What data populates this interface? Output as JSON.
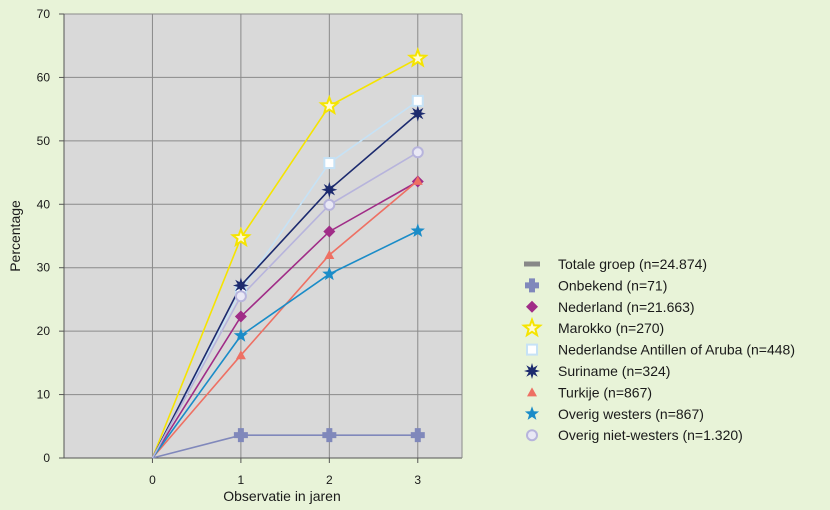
{
  "chart_data": {
    "type": "line",
    "xlabel": "Observatie in jaren",
    "ylabel": "Percentage",
    "x": [
      0,
      1,
      2,
      3
    ],
    "xlim": [
      -1,
      3.5
    ],
    "ylim": [
      0,
      70
    ],
    "x_ticks": [
      "0",
      "1",
      "2",
      "3"
    ],
    "y_ticks": [
      "0",
      "10",
      "20",
      "30",
      "40",
      "50",
      "60",
      "70"
    ],
    "grid": true,
    "legend_position": "right",
    "series": [
      {
        "name": "Totale groep (n=24.874)",
        "color": "#888888",
        "marker": "bar",
        "values": [
          null,
          null,
          null,
          null
        ]
      },
      {
        "name": "Onbekend (n=71)",
        "color": "#8088bb",
        "marker": "plus",
        "values": [
          0,
          3.6,
          3.6,
          3.6
        ]
      },
      {
        "name": "Nederland (n=21.663)",
        "color": "#a02c87",
        "marker": "diamond",
        "values": [
          0,
          22.3,
          35.7,
          43.6
        ]
      },
      {
        "name": "Marokko (n=270)",
        "color": "#f5e400",
        "marker": "star-open",
        "values": [
          0,
          34.7,
          55.5,
          63.0
        ]
      },
      {
        "name": "Nederlandse Antillen of Aruba (n=448)",
        "color": "#c6e2f6",
        "marker": "square-open",
        "values": [
          0,
          26.4,
          46.5,
          56.3
        ]
      },
      {
        "name": "Suriname (n=324)",
        "color": "#1c2a6e",
        "marker": "burst",
        "values": [
          0,
          27.2,
          42.3,
          54.3
        ]
      },
      {
        "name": "Turkije (n=867)",
        "color": "#ee7063",
        "marker": "triangle",
        "values": [
          0,
          16.2,
          32.0,
          43.7
        ]
      },
      {
        "name": "Overig westers (n=867)",
        "color": "#1a8cc8",
        "marker": "star",
        "values": [
          0,
          19.3,
          29.0,
          35.8
        ]
      },
      {
        "name": "Overig niet-westers (n=1.320)",
        "color": "#b7b4dc",
        "marker": "circle",
        "values": [
          0,
          25.5,
          39.9,
          48.2
        ]
      }
    ]
  }
}
